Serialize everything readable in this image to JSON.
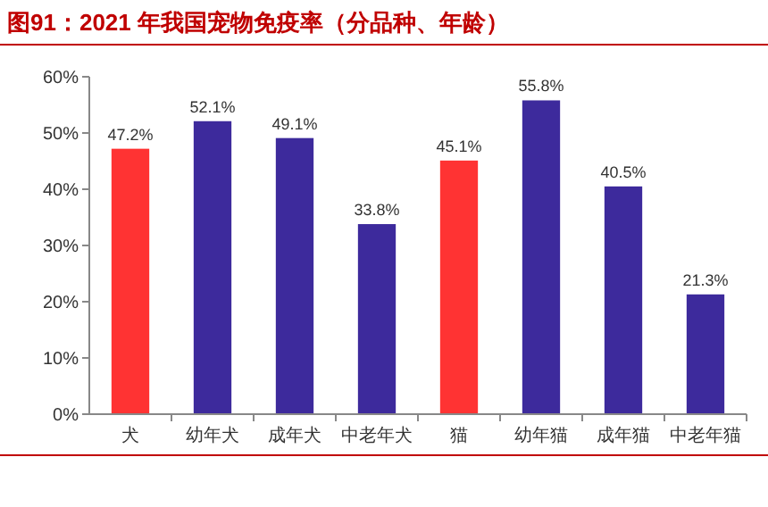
{
  "chart_data": {
    "type": "bar",
    "title": "图91：2021 年我国宠物免疫率（分品种、年龄）",
    "categories": [
      "犬",
      "幼年犬",
      "成年犬",
      "中老年犬",
      "猫",
      "幼年猫",
      "成年猫",
      "中老年猫"
    ],
    "values": [
      47.2,
      52.1,
      49.1,
      33.8,
      45.1,
      55.8,
      40.5,
      21.3
    ],
    "value_labels": [
      "47.2%",
      "52.1%",
      "49.1%",
      "33.8%",
      "45.1%",
      "55.8%",
      "40.5%",
      "21.3%"
    ],
    "colors": [
      "#ff3333",
      "#3d2a9c",
      "#3d2a9c",
      "#3d2a9c",
      "#ff3333",
      "#3d2a9c",
      "#3d2a9c",
      "#3d2a9c"
    ],
    "ylim": [
      0,
      60
    ],
    "yticks": [
      {
        "value": 0,
        "label": "0%"
      },
      {
        "value": 10,
        "label": "10%"
      },
      {
        "value": 20,
        "label": "20%"
      },
      {
        "value": 30,
        "label": "30%"
      },
      {
        "value": 40,
        "label": "40%"
      },
      {
        "value": 50,
        "label": "50%"
      },
      {
        "value": 60,
        "label": "60%"
      }
    ],
    "grid": false
  }
}
